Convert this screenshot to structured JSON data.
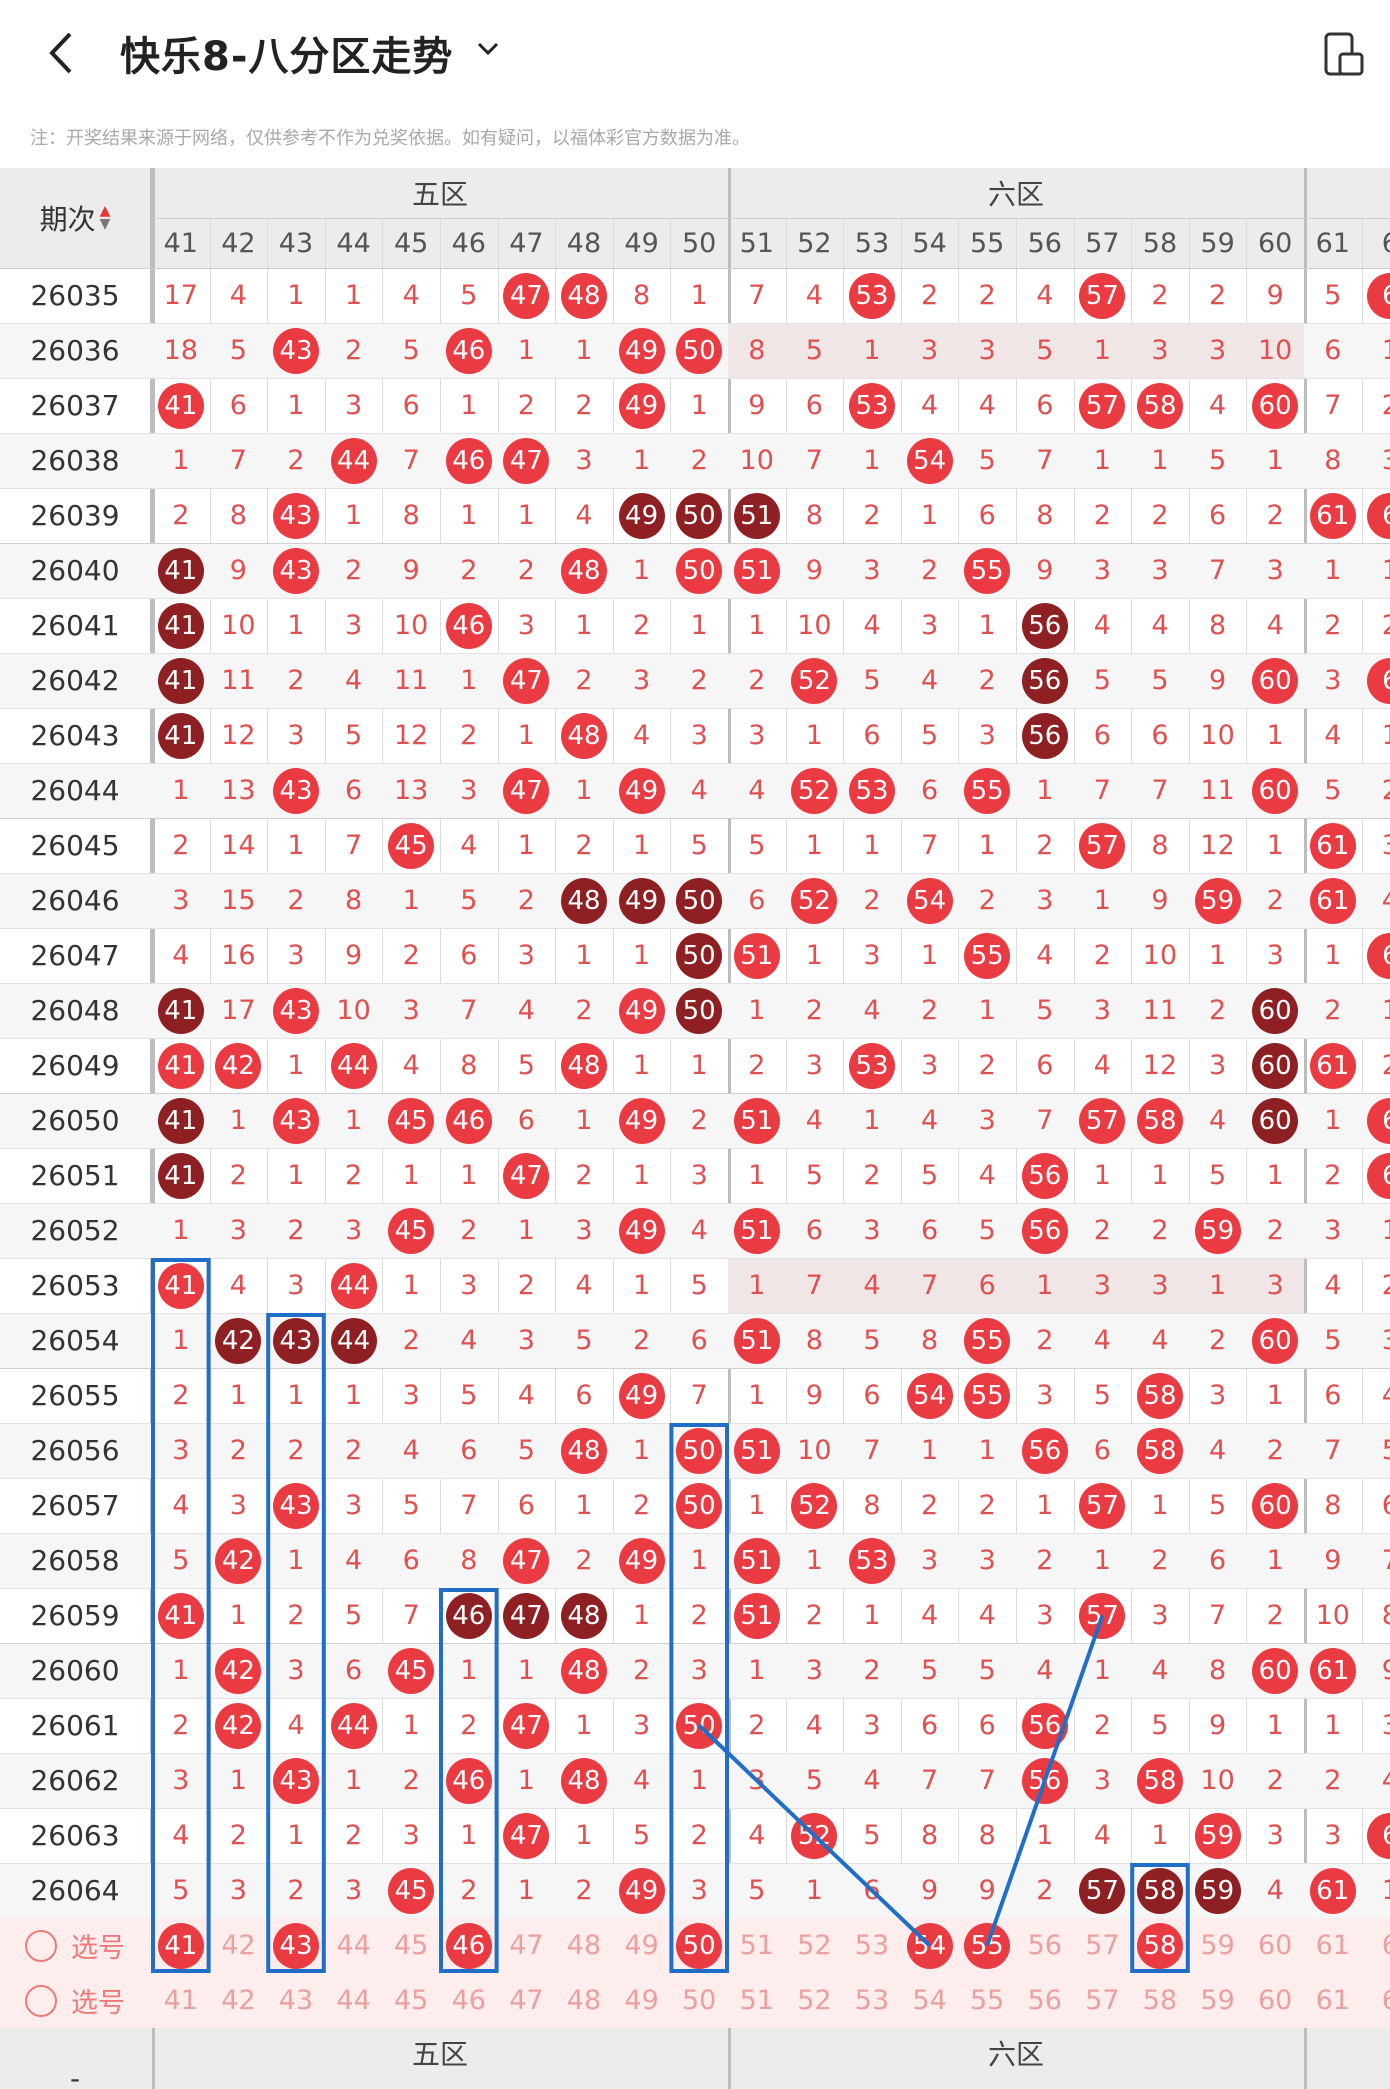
{
  "header": {
    "title": "快乐8-八分区走势",
    "back_icon": "back-arrow-icon",
    "dropdown_icon": "chevron-down-icon",
    "rotate_icon": "rotate-screen-icon"
  },
  "note": "注：开奖结果来源于网络，仅供参考不作为兑奖依据。如有疑问，以福体彩官方数据为准。",
  "table": {
    "period_header": "期次",
    "zones": [
      "五区",
      "六区"
    ],
    "columns": [
      "41",
      "42",
      "43",
      "44",
      "45",
      "46",
      "47",
      "48",
      "49",
      "50",
      "51",
      "52",
      "53",
      "54",
      "55",
      "56",
      "57",
      "58",
      "59",
      "60",
      "61",
      "6"
    ],
    "rows": [
      {
        "period": "26035",
        "cells": [
          "17",
          "4",
          "1",
          "1",
          "4",
          "5",
          "47",
          "48",
          "8",
          "1",
          "7",
          "4",
          "53",
          "2",
          "2",
          "4",
          "57",
          "2",
          "2",
          "9",
          "5",
          "6"
        ]
      },
      {
        "period": "26036",
        "cells": [
          "18",
          "5",
          "43",
          "2",
          "5",
          "46",
          "1",
          "1",
          "49",
          "50",
          "8",
          "5",
          "1",
          "3",
          "3",
          "5",
          "1",
          "3",
          "3",
          "10",
          "6",
          "1"
        ]
      },
      {
        "period": "26037",
        "cells": [
          "41",
          "6",
          "1",
          "3",
          "6",
          "1",
          "2",
          "2",
          "49",
          "1",
          "9",
          "6",
          "53",
          "4",
          "4",
          "6",
          "57",
          "58",
          "4",
          "60",
          "7",
          "2"
        ]
      },
      {
        "period": "26038",
        "cells": [
          "1",
          "7",
          "2",
          "44",
          "7",
          "46",
          "47",
          "3",
          "1",
          "2",
          "10",
          "7",
          "1",
          "54",
          "5",
          "7",
          "1",
          "1",
          "5",
          "1",
          "8",
          "3"
        ]
      },
      {
        "period": "26039",
        "cells": [
          "2",
          "8",
          "43",
          "1",
          "8",
          "1",
          "1",
          "4",
          "49",
          "50",
          "51",
          "8",
          "2",
          "1",
          "6",
          "8",
          "2",
          "2",
          "6",
          "2",
          "61",
          "6"
        ]
      },
      {
        "period": "26040",
        "cells": [
          "41",
          "9",
          "43",
          "2",
          "9",
          "2",
          "2",
          "48",
          "1",
          "50",
          "51",
          "9",
          "3",
          "2",
          "55",
          "9",
          "3",
          "3",
          "7",
          "3",
          "1",
          "1"
        ]
      },
      {
        "period": "26041",
        "cells": [
          "41",
          "10",
          "1",
          "3",
          "10",
          "46",
          "3",
          "1",
          "2",
          "1",
          "1",
          "10",
          "4",
          "3",
          "1",
          "56",
          "4",
          "4",
          "8",
          "4",
          "2",
          "2"
        ]
      },
      {
        "period": "26042",
        "cells": [
          "41",
          "11",
          "2",
          "4",
          "11",
          "1",
          "47",
          "2",
          "3",
          "2",
          "2",
          "52",
          "5",
          "4",
          "2",
          "56",
          "5",
          "5",
          "9",
          "60",
          "3",
          "6"
        ]
      },
      {
        "period": "26043",
        "cells": [
          "41",
          "12",
          "3",
          "5",
          "12",
          "2",
          "1",
          "48",
          "4",
          "3",
          "3",
          "1",
          "6",
          "5",
          "3",
          "56",
          "6",
          "6",
          "10",
          "1",
          "4",
          "1"
        ]
      },
      {
        "period": "26044",
        "cells": [
          "1",
          "13",
          "43",
          "6",
          "13",
          "3",
          "47",
          "1",
          "49",
          "4",
          "4",
          "52",
          "53",
          "6",
          "55",
          "1",
          "7",
          "7",
          "11",
          "60",
          "5",
          "2"
        ]
      },
      {
        "period": "26045",
        "cells": [
          "2",
          "14",
          "1",
          "7",
          "45",
          "4",
          "1",
          "2",
          "1",
          "5",
          "5",
          "1",
          "1",
          "7",
          "1",
          "2",
          "57",
          "8",
          "12",
          "1",
          "61",
          "3"
        ]
      },
      {
        "period": "26046",
        "cells": [
          "3",
          "15",
          "2",
          "8",
          "1",
          "5",
          "2",
          "48",
          "49",
          "50",
          "6",
          "52",
          "2",
          "54",
          "2",
          "3",
          "1",
          "9",
          "59",
          "2",
          "61",
          "4"
        ]
      },
      {
        "period": "26047",
        "cells": [
          "4",
          "16",
          "3",
          "9",
          "2",
          "6",
          "3",
          "1",
          "1",
          "50",
          "51",
          "1",
          "3",
          "1",
          "55",
          "4",
          "2",
          "10",
          "1",
          "3",
          "1",
          "6"
        ]
      },
      {
        "period": "26048",
        "cells": [
          "41",
          "17",
          "43",
          "10",
          "3",
          "7",
          "4",
          "2",
          "49",
          "50",
          "1",
          "2",
          "4",
          "2",
          "1",
          "5",
          "3",
          "11",
          "2",
          "60",
          "2",
          "1"
        ]
      },
      {
        "period": "26049",
        "cells": [
          "41",
          "42",
          "1",
          "44",
          "4",
          "8",
          "5",
          "48",
          "1",
          "1",
          "2",
          "3",
          "53",
          "3",
          "2",
          "6",
          "4",
          "12",
          "3",
          "60",
          "61",
          "2"
        ]
      },
      {
        "period": "26050",
        "cells": [
          "41",
          "1",
          "43",
          "1",
          "45",
          "46",
          "6",
          "1",
          "49",
          "2",
          "51",
          "4",
          "1",
          "4",
          "3",
          "7",
          "57",
          "58",
          "4",
          "60",
          "1",
          "6"
        ]
      },
      {
        "period": "26051",
        "cells": [
          "41",
          "2",
          "1",
          "2",
          "1",
          "1",
          "47",
          "2",
          "1",
          "3",
          "1",
          "5",
          "2",
          "5",
          "4",
          "56",
          "1",
          "1",
          "5",
          "1",
          "2",
          "6"
        ]
      },
      {
        "period": "26052",
        "cells": [
          "1",
          "3",
          "2",
          "3",
          "45",
          "2",
          "1",
          "3",
          "49",
          "4",
          "51",
          "6",
          "3",
          "6",
          "5",
          "56",
          "2",
          "2",
          "59",
          "2",
          "3",
          "1"
        ]
      },
      {
        "period": "26053",
        "cells": [
          "41",
          "4",
          "3",
          "44",
          "1",
          "3",
          "2",
          "4",
          "1",
          "5",
          "1",
          "7",
          "4",
          "7",
          "6",
          "1",
          "3",
          "3",
          "1",
          "3",
          "4",
          "2"
        ]
      },
      {
        "period": "26054",
        "cells": [
          "1",
          "42",
          "43",
          "44",
          "2",
          "4",
          "3",
          "5",
          "2",
          "6",
          "51",
          "8",
          "5",
          "8",
          "55",
          "2",
          "4",
          "4",
          "2",
          "60",
          "5",
          "3"
        ]
      },
      {
        "period": "26055",
        "cells": [
          "2",
          "1",
          "1",
          "1",
          "3",
          "5",
          "4",
          "6",
          "49",
          "7",
          "1",
          "9",
          "6",
          "54",
          "55",
          "3",
          "5",
          "58",
          "3",
          "1",
          "6",
          "4"
        ]
      },
      {
        "period": "26056",
        "cells": [
          "3",
          "2",
          "2",
          "2",
          "4",
          "6",
          "5",
          "48",
          "1",
          "50",
          "51",
          "10",
          "7",
          "1",
          "1",
          "56",
          "6",
          "58",
          "4",
          "2",
          "7",
          "5"
        ]
      },
      {
        "period": "26057",
        "cells": [
          "4",
          "3",
          "43",
          "3",
          "5",
          "7",
          "6",
          "1",
          "2",
          "50",
          "1",
          "52",
          "8",
          "2",
          "2",
          "1",
          "57",
          "1",
          "5",
          "60",
          "8",
          "6"
        ]
      },
      {
        "period": "26058",
        "cells": [
          "5",
          "42",
          "1",
          "4",
          "6",
          "8",
          "47",
          "2",
          "49",
          "1",
          "51",
          "1",
          "53",
          "3",
          "3",
          "2",
          "1",
          "2",
          "6",
          "1",
          "9",
          "7"
        ]
      },
      {
        "period": "26059",
        "cells": [
          "41",
          "1",
          "2",
          "5",
          "7",
          "46",
          "47",
          "48",
          "1",
          "2",
          "51",
          "2",
          "1",
          "4",
          "4",
          "3",
          "57",
          "3",
          "7",
          "2",
          "10",
          "8"
        ]
      },
      {
        "period": "26060",
        "cells": [
          "1",
          "42",
          "3",
          "6",
          "45",
          "1",
          "1",
          "48",
          "2",
          "3",
          "1",
          "3",
          "2",
          "5",
          "5",
          "4",
          "1",
          "4",
          "8",
          "60",
          "61",
          "9"
        ]
      },
      {
        "period": "26061",
        "cells": [
          "2",
          "42",
          "4",
          "44",
          "1",
          "2",
          "47",
          "1",
          "3",
          "50",
          "2",
          "4",
          "3",
          "6",
          "6",
          "56",
          "2",
          "5",
          "9",
          "1",
          "1",
          "3"
        ]
      },
      {
        "period": "26062",
        "cells": [
          "3",
          "1",
          "43",
          "1",
          "2",
          "46",
          "1",
          "48",
          "4",
          "1",
          "3",
          "5",
          "4",
          "7",
          "7",
          "56",
          "3",
          "58",
          "10",
          "2",
          "2",
          "4"
        ]
      },
      {
        "period": "26063",
        "cells": [
          "4",
          "2",
          "1",
          "2",
          "3",
          "1",
          "47",
          "1",
          "5",
          "2",
          "4",
          "52",
          "5",
          "8",
          "8",
          "1",
          "4",
          "1",
          "59",
          "3",
          "3",
          "6"
        ]
      },
      {
        "period": "26064",
        "cells": [
          "5",
          "3",
          "2",
          "3",
          "45",
          "2",
          "1",
          "2",
          "49",
          "3",
          "5",
          "1",
          "6",
          "9",
          "9",
          "2",
          "57",
          "58",
          "59",
          "4",
          "61",
          "1"
        ]
      }
    ],
    "select_rows": [
      {
        "label": "选号",
        "cells": [
          "41",
          "42",
          "43",
          "44",
          "45",
          "46",
          "47",
          "48",
          "49",
          "50",
          "51",
          "52",
          "53",
          "54",
          "55",
          "56",
          "57",
          "58",
          "59",
          "60",
          "61",
          "6"
        ],
        "selected": [
          "41",
          "43",
          "46",
          "50",
          "54",
          "55",
          "58"
        ]
      },
      {
        "label": "选号",
        "cells": [
          "41",
          "42",
          "43",
          "44",
          "45",
          "46",
          "47",
          "48",
          "49",
          "50",
          "51",
          "52",
          "53",
          "54",
          "55",
          "56",
          "57",
          "58",
          "59",
          "60",
          "61",
          "6"
        ],
        "selected": []
      }
    ],
    "footer_zones": [
      "五区",
      "六区"
    ],
    "footer_period": "-",
    "dark_balls": [
      "26039-49",
      "26039-50",
      "26039-51",
      "26040-41",
      "26041-41",
      "26041-56",
      "26042-41",
      "26042-56",
      "26043-41",
      "26043-56",
      "26046-48",
      "26046-49",
      "26046-50",
      "26047-50",
      "26048-41",
      "26048-50",
      "26048-60",
      "26049-60",
      "26050-41",
      "26050-60",
      "26051-41",
      "26054-42",
      "26054-43",
      "26054-44",
      "26059-46",
      "26059-47",
      "26059-48",
      "26064-57",
      "26064-58",
      "26064-59"
    ],
    "colors": {
      "ball_red": "#ea3a42",
      "ball_dark": "#8e1f22",
      "marker_blue": "#1f6fc8",
      "number_red": "#e05050"
    }
  }
}
